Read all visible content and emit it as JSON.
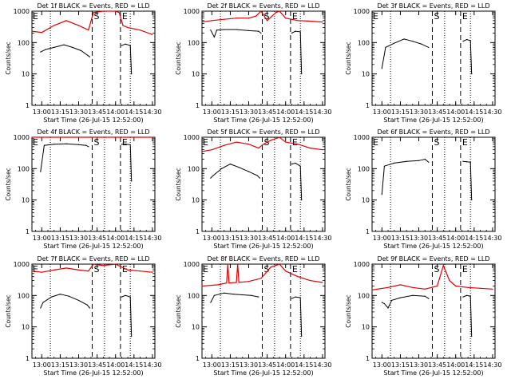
{
  "figure": {
    "ylabel": "Counts/sec",
    "xlabel": "Start Time (26-Jul-15 12:52:00)",
    "xticks": [
      "13:00",
      "13:15",
      "13:30",
      "13:45",
      "14:00",
      "14:15",
      "14:30"
    ],
    "yticks": [
      "1",
      "10",
      "100",
      "1000"
    ],
    "colors": {
      "events": "#000000",
      "lld": "#e00000",
      "axes": "#000000",
      "background": "#ffffff"
    }
  },
  "chart_data": [
    {
      "type": "line",
      "title": "Det 1f BLACK = Events, RED = LLD",
      "xlabel": "Start Time (26-Jul-15 12:52:00)",
      "ylabel": "Counts/sec",
      "xlim": [
        "12:52",
        "14:32"
      ],
      "ylim": [
        1,
        1000
      ],
      "yscale": "log",
      "markers": [
        {
          "label": "E",
          "x": "12:52",
          "style": "solid"
        },
        {
          "label": "S",
          "x": "13:41",
          "style": "dashed"
        },
        {
          "label": "E",
          "x": "14:04",
          "style": "dashed"
        }
      ],
      "dotted_lines": [
        "13:07",
        "13:51",
        "14:12"
      ],
      "series": [
        {
          "color": "#000000",
          "x": [
            "12:59",
            "13:03",
            "13:10",
            "13:18",
            "13:25",
            "13:32",
            "13:37",
            "13:39",
            "14:05",
            "14:08",
            "14:12",
            "14:13"
          ],
          "y": [
            50,
            60,
            70,
            85,
            70,
            55,
            40,
            35,
            80,
            90,
            80,
            10
          ]
        },
        {
          "color": "#e00000",
          "x": [
            "12:52",
            "13:00",
            "13:10",
            "13:20",
            "13:30",
            "13:38",
            "13:42",
            "13:50",
            "14:00",
            "14:03",
            "14:06",
            "14:10",
            "14:20",
            "14:30"
          ],
          "y": [
            230,
            210,
            350,
            500,
            350,
            250,
            900,
            1000,
            1000,
            900,
            350,
            300,
            250,
            180
          ]
        }
      ]
    },
    {
      "type": "line",
      "title": "Det 2f BLACK = Events, RED = LLD",
      "xlabel": "Start Time (26-Jul-15 12:52:00)",
      "ylabel": "Counts/sec",
      "xlim": [
        "12:52",
        "14:32"
      ],
      "ylim": [
        1,
        1000
      ],
      "yscale": "log",
      "markers": [
        {
          "label": "S",
          "x": "13:41",
          "style": "dashed"
        },
        {
          "label": "E",
          "x": "14:04",
          "style": "dashed"
        }
      ],
      "dotted_lines": [
        "13:07",
        "13:51",
        "14:12"
      ],
      "series": [
        {
          "color": "#000000",
          "x": [
            "12:59",
            "13:02",
            "13:04",
            "13:10",
            "13:20",
            "13:30",
            "13:38",
            "13:40",
            "14:05",
            "14:08",
            "14:12",
            "14:13"
          ],
          "y": [
            250,
            150,
            250,
            260,
            260,
            240,
            230,
            200,
            200,
            230,
            220,
            10
          ]
        },
        {
          "color": "#e00000",
          "x": [
            "12:52",
            "13:00",
            "13:10",
            "13:20",
            "13:30",
            "13:36",
            "13:40",
            "13:45",
            "13:52",
            "13:55",
            "14:00",
            "14:10",
            "14:20",
            "14:30"
          ],
          "y": [
            450,
            500,
            550,
            600,
            600,
            700,
            1000,
            500,
            900,
            1000,
            600,
            500,
            480,
            450
          ]
        }
      ]
    },
    {
      "type": "line",
      "title": "Det 3f BLACK = Events, RED = LLD",
      "xlabel": "Start Time (26-Jul-15 12:52:00)",
      "ylabel": "Counts/sec",
      "xlim": [
        "12:52",
        "14:32"
      ],
      "ylim": [
        1,
        1000
      ],
      "yscale": "log",
      "markers": [
        {
          "label": "E",
          "x": "12:52",
          "style": "solid"
        },
        {
          "label": "S",
          "x": "13:41",
          "style": "dashed"
        },
        {
          "label": "E",
          "x": "14:04",
          "style": "dashed"
        }
      ],
      "dotted_lines": [
        "13:07",
        "13:51",
        "14:12"
      ],
      "series": [
        {
          "color": "#000000",
          "x": [
            "13:00",
            "13:03",
            "13:10",
            "13:18",
            "13:25",
            "13:32",
            "13:38",
            "14:06",
            "14:09",
            "14:12",
            "14:13"
          ],
          "y": [
            15,
            70,
            95,
            130,
            110,
            90,
            70,
            110,
            125,
            115,
            10
          ]
        }
      ]
    },
    {
      "type": "line",
      "title": "Det 4f BLACK = Events, RED = LLD",
      "xlabel": "Start Time (26-Jul-15 12:52:00)",
      "ylabel": "Counts/sec",
      "xlim": [
        "12:52",
        "14:32"
      ],
      "ylim": [
        1,
        1000
      ],
      "yscale": "log",
      "markers": [
        {
          "label": "E",
          "x": "12:52",
          "style": "solid"
        },
        {
          "label": "S",
          "x": "13:41",
          "style": "dashed"
        },
        {
          "label": "E",
          "x": "14:04",
          "style": "dashed"
        }
      ],
      "dotted_lines": [
        "13:07",
        "13:51",
        "14:12"
      ],
      "series": [
        {
          "color": "#000000",
          "x": [
            "12:59",
            "13:02",
            "13:10",
            "13:20",
            "13:30",
            "13:36",
            "13:38",
            "14:05",
            "14:08",
            "14:12",
            "14:13"
          ],
          "y": [
            80,
            550,
            600,
            620,
            580,
            550,
            500,
            600,
            600,
            580,
            40
          ]
        },
        {
          "color": "#e00000",
          "x": [
            "12:52",
            "13:20",
            "13:40",
            "13:47",
            "13:49",
            "13:52",
            "14:00",
            "14:30"
          ],
          "y": [
            2000,
            2000,
            2200,
            5000,
            8000,
            2500,
            2100,
            2000
          ]
        }
      ]
    },
    {
      "type": "line",
      "title": "Det 5f BLACK = Events, RED = LLD",
      "xlabel": "Start Time (26-Jul-15 12:52:00)",
      "ylabel": "Counts/sec",
      "xlim": [
        "12:52",
        "14:32"
      ],
      "ylim": [
        1,
        1000
      ],
      "yscale": "log",
      "markers": [
        {
          "label": "E",
          "x": "12:52",
          "style": "solid"
        },
        {
          "label": "S",
          "x": "13:41",
          "style": "dashed"
        },
        {
          "label": "E",
          "x": "14:04",
          "style": "dashed"
        }
      ],
      "dotted_lines": [
        "13:07",
        "13:51",
        "14:12"
      ],
      "series": [
        {
          "color": "#000000",
          "x": [
            "12:59",
            "13:01",
            "13:08",
            "13:15",
            "13:22",
            "13:30",
            "13:37",
            "13:39",
            "14:05",
            "14:08",
            "14:12",
            "14:13"
          ],
          "y": [
            50,
            60,
            100,
            140,
            110,
            80,
            60,
            50,
            140,
            150,
            120,
            10
          ]
        },
        {
          "color": "#e00000",
          "x": [
            "12:52",
            "13:00",
            "13:10",
            "13:20",
            "13:30",
            "13:38",
            "13:42",
            "13:48",
            "13:55",
            "14:00",
            "14:10",
            "14:20",
            "14:30"
          ],
          "y": [
            350,
            400,
            550,
            700,
            600,
            450,
            600,
            800,
            1000,
            700,
            600,
            450,
            400
          ]
        }
      ]
    },
    {
      "type": "line",
      "title": "Det 6f BLACK = Events, RED = LLD",
      "xlabel": "Start Time (26-Jul-15 12:52:00)",
      "ylabel": "Counts/sec",
      "xlim": [
        "12:52",
        "14:32"
      ],
      "ylim": [
        1,
        1000
      ],
      "yscale": "log",
      "markers": [
        {
          "label": "E",
          "x": "12:52",
          "style": "solid"
        },
        {
          "label": "S",
          "x": "13:41",
          "style": "dashed"
        },
        {
          "label": "E",
          "x": "14:04",
          "style": "dashed"
        }
      ],
      "dotted_lines": [
        "13:07",
        "13:51",
        "14:12"
      ],
      "series": [
        {
          "color": "#000000",
          "x": [
            "13:00",
            "13:02",
            "13:10",
            "13:20",
            "13:30",
            "13:35",
            "13:38",
            "14:06",
            "14:09",
            "14:12",
            "14:13"
          ],
          "y": [
            15,
            120,
            150,
            170,
            180,
            200,
            160,
            170,
            165,
            160,
            10
          ]
        }
      ]
    },
    {
      "type": "line",
      "title": "Det 7f BLACK = Events, RED = LLD",
      "xlabel": "Start Time (26-Jul-15 12:52:00)",
      "ylabel": "Counts/sec",
      "xlim": [
        "12:52",
        "14:32"
      ],
      "ylim": [
        1,
        1000
      ],
      "yscale": "log",
      "markers": [
        {
          "label": "E",
          "x": "12:52",
          "style": "solid"
        },
        {
          "label": "S",
          "x": "13:41",
          "style": "dashed"
        },
        {
          "label": "E",
          "x": "14:04",
          "style": "dashed"
        }
      ],
      "dotted_lines": [
        "13:07",
        "13:51",
        "14:12"
      ],
      "series": [
        {
          "color": "#000000",
          "x": [
            "12:59",
            "13:01",
            "13:08",
            "13:15",
            "13:22",
            "13:30",
            "13:37",
            "13:39",
            "14:05",
            "14:08",
            "14:12",
            "14:13"
          ],
          "y": [
            40,
            60,
            90,
            110,
            95,
            70,
            50,
            40,
            90,
            100,
            90,
            5
          ]
        },
        {
          "color": "#e00000",
          "x": [
            "12:52",
            "13:00",
            "13:10",
            "13:20",
            "13:30",
            "13:38",
            "13:42",
            "13:50",
            "14:00",
            "14:10",
            "14:20",
            "14:30"
          ],
          "y": [
            600,
            550,
            650,
            750,
            650,
            600,
            1000,
            900,
            1000,
            650,
            600,
            550
          ]
        }
      ]
    },
    {
      "type": "line",
      "title": "Det 8f BLACK = Events, RED = LLD",
      "xlabel": "Start Time (26-Jul-15 12:52:00)",
      "ylabel": "Counts/sec",
      "xlim": [
        "12:52",
        "14:32"
      ],
      "ylim": [
        1,
        1000
      ],
      "yscale": "log",
      "markers": [
        {
          "label": "E",
          "x": "12:52",
          "style": "solid"
        },
        {
          "label": "S",
          "x": "13:41",
          "style": "dashed"
        },
        {
          "label": "E",
          "x": "14:04",
          "style": "dashed"
        }
      ],
      "dotted_lines": [
        "13:07",
        "13:51",
        "14:12"
      ],
      "series": [
        {
          "color": "#000000",
          "x": [
            "12:59",
            "13:02",
            "13:10",
            "13:18",
            "13:25",
            "13:32",
            "13:38",
            "14:05",
            "14:08",
            "14:12",
            "14:13"
          ],
          "y": [
            60,
            100,
            120,
            110,
            105,
            100,
            90,
            80,
            90,
            85,
            5
          ]
        },
        {
          "color": "#e00000",
          "x": [
            "12:52",
            "13:05",
            "13:12",
            "13:13",
            "13:14",
            "13:20",
            "13:21",
            "13:22",
            "13:30",
            "13:40",
            "13:48",
            "13:55",
            "14:00",
            "14:10",
            "14:20",
            "14:30"
          ],
          "y": [
            200,
            220,
            250,
            1000,
            250,
            260,
            1000,
            260,
            280,
            350,
            800,
            1000,
            600,
            400,
            300,
            260
          ]
        }
      ]
    },
    {
      "type": "line",
      "title": "Det 9f BLACK = Events, RED = LLD",
      "xlabel": "Start Time (26-Jul-15 12:52:00)",
      "ylabel": "Counts/sec",
      "xlim": [
        "12:52",
        "14:32"
      ],
      "ylim": [
        1,
        1000
      ],
      "yscale": "log",
      "markers": [
        {
          "label": "S",
          "x": "13:41",
          "style": "dashed"
        },
        {
          "label": "E",
          "x": "14:04",
          "style": "dashed"
        }
      ],
      "dotted_lines": [
        "13:07",
        "13:51",
        "14:12"
      ],
      "series": [
        {
          "color": "#000000",
          "x": [
            "13:00",
            "13:02",
            "13:05",
            "13:08",
            "13:15",
            "13:25",
            "13:35",
            "13:38",
            "14:06",
            "14:09",
            "14:12",
            "14:13"
          ],
          "y": [
            60,
            55,
            40,
            70,
            85,
            100,
            95,
            80,
            90,
            100,
            95,
            5
          ]
        },
        {
          "color": "#e00000",
          "x": [
            "12:52",
            "13:05",
            "13:15",
            "13:25",
            "13:35",
            "13:45",
            "13:50",
            "13:55",
            "14:00",
            "14:10",
            "14:20",
            "14:30"
          ],
          "y": [
            150,
            180,
            220,
            180,
            160,
            200,
            900,
            300,
            200,
            180,
            170,
            160
          ]
        }
      ]
    }
  ]
}
